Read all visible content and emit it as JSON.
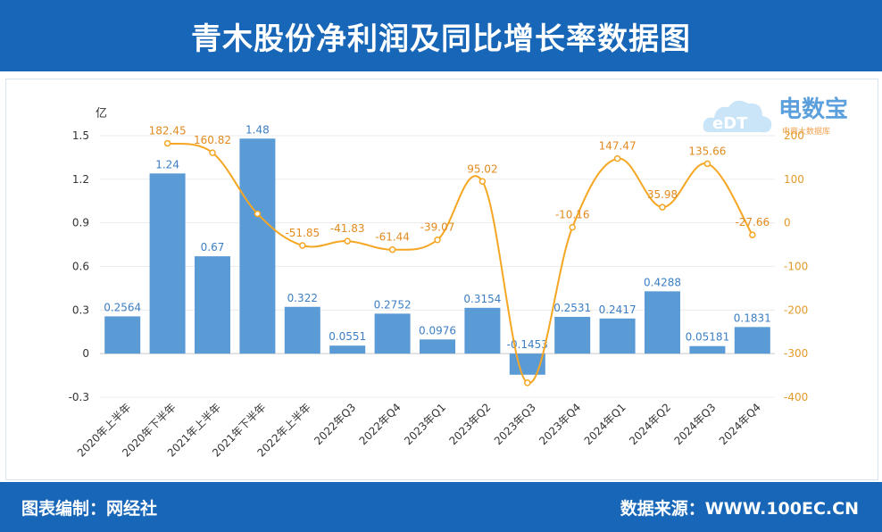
{
  "title": "青木股份净利润及同比增长率数据图",
  "footer": {
    "left": "图表编制：网经社",
    "right": "数据来源：WWW.100EC.CN"
  },
  "logo": {
    "text": "电数宝",
    "badge": "eDT",
    "sub": "电商大数据库"
  },
  "colors": {
    "header": "#1766b8",
    "bar": "#5b9bd5",
    "line": "#f5a623"
  },
  "chart_data": {
    "type": "bar+line",
    "y_left_unit": "亿",
    "categories": [
      "2020年上半年",
      "2020年下半年",
      "2021年上半年",
      "2021年下半年",
      "2022年上半年",
      "2022年Q3",
      "2022年Q4",
      "2023年Q1",
      "2023年Q2",
      "2023年Q3",
      "2023年Q4",
      "2024年Q1",
      "2024年Q2",
      "2024年Q3",
      "2024年Q4"
    ],
    "bar_values": [
      0.2564,
      1.24,
      0.67,
      1.48,
      0.322,
      0.0551,
      0.2752,
      0.0976,
      0.3154,
      -0.1453,
      0.2531,
      0.2417,
      0.4288,
      0.05181,
      0.1831
    ],
    "bar_labels": [
      "0.2564",
      "1.24",
      "0.67",
      "1.48",
      "0.322",
      "0.0551",
      "0.2752",
      "0.0976",
      "0.3154",
      "-0.1453",
      "0.2531",
      "0.2417",
      "0.4288",
      "0.05181",
      "0.1831"
    ],
    "line_values": [
      182.45,
      160.82,
      20.9,
      -51.85,
      -41.83,
      -61.44,
      -39.07,
      95.02,
      -367,
      -10.16,
      147.47,
      35.98,
      135.66,
      -27.66
    ],
    "line_labels": [
      "182.45",
      "160.82",
      "",
      "-51.85",
      "-41.83",
      "-61.44",
      "-39.07",
      "95.02",
      "",
      "-10.16",
      "147.47",
      "35.98",
      "135.66",
      "-27.66"
    ],
    "left_ticks": [
      "1.5",
      "1.2",
      "0.9",
      "0.6",
      "0.3",
      "0",
      "-0.3"
    ],
    "left_ylim": [
      -0.3,
      1.5
    ],
    "right_ticks": [
      "200",
      "100",
      "0",
      "-100",
      "-200",
      "-300",
      "-400"
    ],
    "right_ylim": [
      -400,
      200
    ]
  }
}
